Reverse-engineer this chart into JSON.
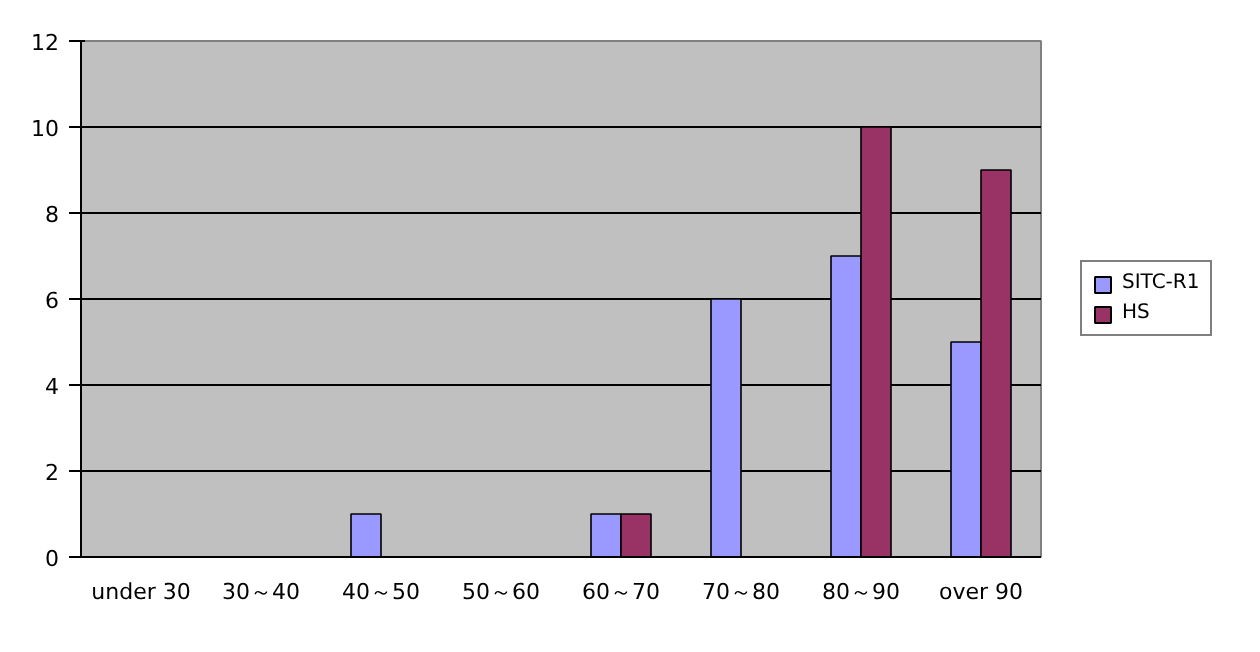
{
  "chart_data": {
    "type": "bar",
    "categories": [
      "under 30",
      "30～40",
      "40～50",
      "50～60",
      "60～70",
      "70～80",
      "80～90",
      "over 90"
    ],
    "series": [
      {
        "name": "SITC-R1",
        "color": "#9999ff",
        "values": [
          0,
          0,
          1,
          0,
          1,
          6,
          7,
          5
        ]
      },
      {
        "name": "HS",
        "color": "#993366",
        "values": [
          0,
          0,
          0,
          0,
          1,
          0,
          10,
          9
        ]
      }
    ],
    "ylim": [
      0,
      12
    ],
    "yticks": [
      0,
      2,
      4,
      6,
      8,
      10,
      12
    ],
    "grid": "y",
    "legend": "right"
  }
}
